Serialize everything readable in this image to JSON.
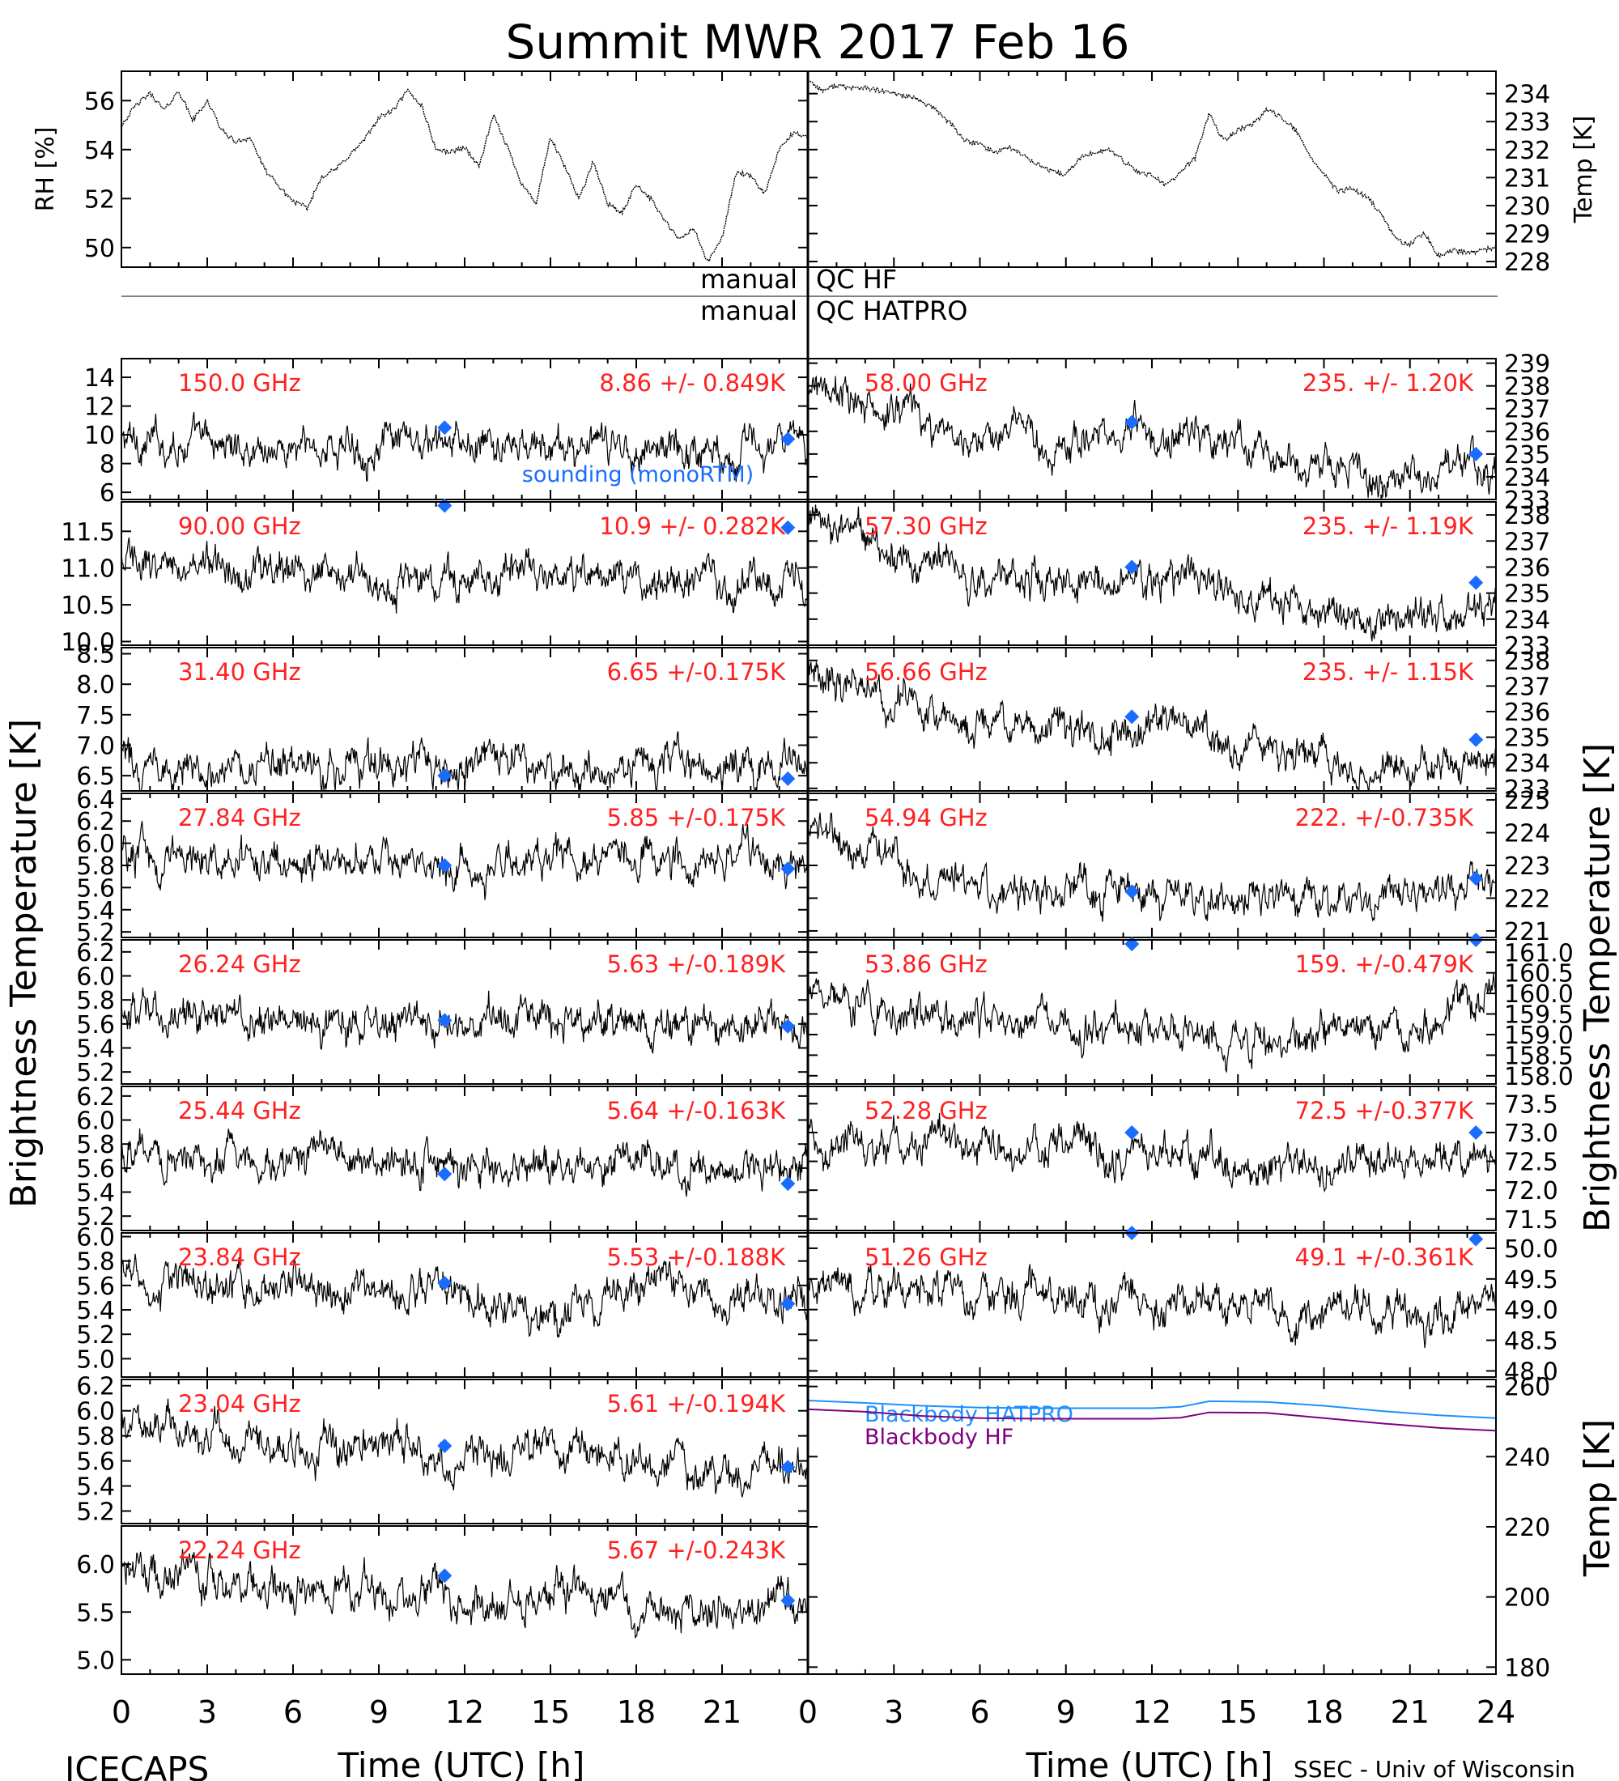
{
  "title": "Summit MWR 2017 Feb 16",
  "footer_left": "ICECAPS",
  "footer_right": "SSEC - Univ of Wisconsin",
  "qc": [
    {
      "left": "manual",
      "right": "QC HF"
    },
    {
      "left": "manual",
      "right": "QC HATPRO"
    }
  ],
  "colors": {
    "trace": "#000000",
    "stat_text": "#ff2020",
    "sounding_marker": "#1a6cff",
    "bb_hatpro": "#1e90ff",
    "bb_hf": "#800080"
  },
  "chart_data": [
    {
      "type": "line",
      "id": "rh",
      "ylabel": "RH [%]",
      "ylim": [
        49.2,
        57.2
      ],
      "yticks": [
        50,
        52,
        54,
        56
      ],
      "xlim": [
        0,
        24
      ],
      "series": [
        {
          "x": [
            0,
            0.5,
            1,
            1.5,
            2,
            2.5,
            3,
            3.5,
            4,
            4.5,
            5,
            5.5,
            6,
            6.5,
            7,
            7.5,
            8,
            8.5,
            9,
            9.5,
            10,
            10.5,
            11,
            11.5,
            12,
            12.5,
            13,
            13.5,
            14,
            14.5,
            15,
            15.5,
            16,
            16.5,
            17,
            17.5,
            18,
            18.5,
            19,
            19.5,
            20,
            20.5,
            21,
            21.5,
            22,
            22.5,
            23,
            23.5,
            24
          ],
          "y": [
            55.0,
            55.8,
            56.3,
            55.6,
            56.4,
            55.2,
            56.0,
            54.8,
            54.3,
            54.5,
            53.2,
            52.5,
            51.9,
            51.6,
            52.9,
            53.2,
            53.8,
            54.4,
            55.3,
            55.6,
            56.4,
            55.8,
            54.0,
            53.9,
            54.1,
            53.3,
            55.4,
            54.1,
            52.6,
            51.8,
            54.5,
            53.3,
            52.0,
            53.5,
            51.8,
            51.4,
            52.6,
            52.0,
            51.1,
            50.3,
            50.8,
            49.4,
            50.4,
            53.1,
            52.9,
            52.2,
            54.0,
            54.7,
            54.5
          ]
        }
      ]
    },
    {
      "type": "line",
      "id": "temp",
      "ylabel": "Temp [K]",
      "ylim": [
        227.8,
        234.8
      ],
      "yticks": [
        228,
        229,
        230,
        231,
        232,
        233,
        234
      ],
      "xlim": [
        0,
        24
      ],
      "series": [
        {
          "x": [
            0,
            0.5,
            1,
            1.5,
            2,
            2.5,
            3,
            3.5,
            4,
            4.5,
            5,
            5.5,
            6,
            6.5,
            7,
            7.5,
            8,
            8.5,
            9,
            9.5,
            10,
            10.5,
            11,
            11.5,
            12,
            12.5,
            13,
            13.5,
            14,
            14.5,
            15,
            15.5,
            16,
            16.5,
            17,
            17.5,
            18,
            18.5,
            19,
            19.5,
            20,
            20.5,
            21,
            21.5,
            22,
            22.5,
            23,
            23.5,
            24
          ],
          "y": [
            234.5,
            234.1,
            234.3,
            234.2,
            234.2,
            234.1,
            234.0,
            233.9,
            233.7,
            233.4,
            232.9,
            232.3,
            232.2,
            231.9,
            232.1,
            231.8,
            231.5,
            231.2,
            231.1,
            231.7,
            231.9,
            232.0,
            231.6,
            231.2,
            231.1,
            230.7,
            231.2,
            231.7,
            233.3,
            232.3,
            232.7,
            232.9,
            233.4,
            233.2,
            232.7,
            231.8,
            231.1,
            230.5,
            230.6,
            230.3,
            229.7,
            228.8,
            228.6,
            229.0,
            228.2,
            228.4,
            228.3,
            228.4,
            228.5
          ]
        }
      ]
    },
    {
      "type": "scatter",
      "id": "150.0",
      "label": "150.0 GHz",
      "stat": "8.86 +/- 0.849K",
      "ylim": [
        5.5,
        15.3
      ],
      "yticks": [
        6,
        8,
        10,
        12,
        14
      ],
      "x_profile": [
        0,
        3,
        6,
        9,
        12,
        15,
        18,
        21,
        24
      ],
      "y_profile": [
        9.6,
        9.4,
        9.0,
        9.3,
        9.1,
        9.0,
        9.2,
        9.0,
        9.2
      ],
      "sounding": [
        [
          11.3,
          10.5
        ],
        [
          23.3,
          9.7
        ]
      ],
      "annotation": "sounding (monoRTM)"
    },
    {
      "type": "scatter",
      "id": "90.00",
      "label": "90.00 GHz",
      "stat": "10.9 +/- 0.282K",
      "ylim": [
        9.95,
        11.9
      ],
      "yticks": [
        10.0,
        10.5,
        11.0,
        11.5
      ],
      "x_profile": [
        0,
        3,
        6,
        9,
        12,
        15,
        18,
        21,
        24
      ],
      "y_profile": [
        11.1,
        11.05,
        10.95,
        10.9,
        10.85,
        10.9,
        10.85,
        10.75,
        10.8
      ],
      "sounding": [
        [
          11.3,
          11.85
        ],
        [
          23.3,
          11.55
        ]
      ]
    },
    {
      "type": "scatter",
      "id": "31.40",
      "label": "31.40 GHz",
      "stat": "6.65 +/-0.175K",
      "ylim": [
        6.25,
        8.6
      ],
      "yticks": [
        6.5,
        7.0,
        7.5,
        8.0,
        8.5
      ],
      "x_profile": [
        0,
        3,
        6,
        9,
        12,
        15,
        18,
        21,
        24
      ],
      "y_profile": [
        6.75,
        6.7,
        6.65,
        6.6,
        6.65,
        6.6,
        6.65,
        6.6,
        6.7
      ],
      "sounding": [
        [
          11.3,
          6.5
        ],
        [
          23.3,
          6.45
        ]
      ]
    },
    {
      "type": "scatter",
      "id": "27.84",
      "label": "27.84 GHz",
      "stat": "5.85 +/-0.175K",
      "ylim": [
        5.15,
        6.45
      ],
      "yticks": [
        5.2,
        5.4,
        5.6,
        5.8,
        6.0,
        6.2,
        6.4
      ],
      "x_profile": [
        0,
        3,
        6,
        9,
        12,
        15,
        18,
        21,
        24
      ],
      "y_profile": [
        5.9,
        5.85,
        5.8,
        5.85,
        5.8,
        5.9,
        5.85,
        5.8,
        5.85
      ],
      "sounding": [
        [
          11.3,
          5.8
        ],
        [
          23.3,
          5.77
        ]
      ]
    },
    {
      "type": "scatter",
      "id": "26.24",
      "label": "26.24 GHz",
      "stat": "5.63 +/-0.189K",
      "ylim": [
        5.1,
        6.3
      ],
      "yticks": [
        5.2,
        5.4,
        5.6,
        5.8,
        6.0,
        6.2
      ],
      "x_profile": [
        0,
        3,
        6,
        9,
        12,
        15,
        18,
        21,
        24
      ],
      "y_profile": [
        5.7,
        5.65,
        5.6,
        5.65,
        5.6,
        5.65,
        5.6,
        5.6,
        5.65
      ],
      "sounding": [
        [
          11.3,
          5.63
        ],
        [
          23.3,
          5.58
        ]
      ]
    },
    {
      "type": "scatter",
      "id": "25.44",
      "label": "25.44 GHz",
      "stat": "5.64 +/-0.163K",
      "ylim": [
        5.08,
        6.28
      ],
      "yticks": [
        5.2,
        5.4,
        5.6,
        5.8,
        6.0,
        6.2
      ],
      "x_profile": [
        0,
        3,
        6,
        9,
        12,
        15,
        18,
        21,
        24
      ],
      "y_profile": [
        5.75,
        5.7,
        5.65,
        5.7,
        5.6,
        5.6,
        5.65,
        5.6,
        5.6
      ],
      "sounding": [
        [
          11.3,
          5.55
        ],
        [
          23.3,
          5.47
        ]
      ]
    },
    {
      "type": "scatter",
      "id": "23.84",
      "label": "23.84 GHz",
      "stat": "5.53 +/-0.188K",
      "ylim": [
        4.85,
        6.03
      ],
      "yticks": [
        5.0,
        5.2,
        5.4,
        5.6,
        5.8,
        6.0
      ],
      "x_profile": [
        0,
        3,
        6,
        9,
        12,
        15,
        18,
        21,
        24
      ],
      "y_profile": [
        5.65,
        5.6,
        5.55,
        5.6,
        5.5,
        5.3,
        5.6,
        5.5,
        5.5
      ],
      "sounding": [
        [
          11.3,
          5.62
        ],
        [
          23.3,
          5.45
        ]
      ]
    },
    {
      "type": "scatter",
      "id": "23.04",
      "label": "23.04 GHz",
      "stat": "5.61 +/-0.194K",
      "ylim": [
        5.1,
        6.25
      ],
      "yticks": [
        5.2,
        5.4,
        5.6,
        5.8,
        6.0,
        6.2
      ],
      "x_profile": [
        0,
        3,
        6,
        9,
        12,
        15,
        18,
        21,
        24
      ],
      "y_profile": [
        5.9,
        5.8,
        5.7,
        5.75,
        5.6,
        5.75,
        5.55,
        5.5,
        5.55
      ],
      "sounding": [
        [
          11.3,
          5.72
        ],
        [
          23.3,
          5.55
        ]
      ]
    },
    {
      "type": "scatter",
      "id": "22.24",
      "label": "22.24 GHz",
      "stat": "5.67 +/-0.243K",
      "ylim": [
        4.85,
        6.4
      ],
      "yticks": [
        5.0,
        5.5,
        6.0
      ],
      "x_profile": [
        0,
        3,
        6,
        9,
        12,
        15,
        18,
        21,
        24
      ],
      "y_profile": [
        5.95,
        5.85,
        5.7,
        5.75,
        5.6,
        5.7,
        5.55,
        5.5,
        5.55
      ],
      "sounding": [
        [
          11.3,
          5.88
        ],
        [
          23.3,
          5.62
        ]
      ]
    },
    {
      "type": "scatter",
      "id": "58.00",
      "label": "58.00 GHz",
      "stat": "235. +/- 1.20K",
      "ylim": [
        233,
        239.2
      ],
      "yticks": [
        233,
        234,
        235,
        236,
        237,
        238,
        239
      ],
      "x_profile": [
        0,
        1,
        3,
        6,
        9,
        11,
        13,
        15,
        18,
        20,
        22,
        24
      ],
      "y_profile": [
        238.0,
        237.6,
        236.8,
        235.9,
        235.6,
        235.9,
        236.0,
        235.3,
        234.4,
        234.0,
        234.2,
        234.6
      ],
      "sounding": [
        [
          11.3,
          236.4
        ],
        [
          23.3,
          235.0
        ]
      ]
    },
    {
      "type": "scatter",
      "id": "57.30",
      "label": "57.30 GHz",
      "stat": "235. +/- 1.19K",
      "ylim": [
        233,
        238.5
      ],
      "yticks": [
        233,
        234,
        235,
        236,
        237,
        238
      ],
      "x_profile": [
        0,
        1,
        3,
        6,
        9,
        11,
        13,
        15,
        18,
        20,
        22,
        24
      ],
      "y_profile": [
        238.0,
        237.4,
        236.6,
        235.6,
        235.5,
        235.6,
        235.7,
        235.0,
        234.3,
        233.8,
        234.0,
        234.4
      ],
      "sounding": [
        [
          11.3,
          236.0
        ],
        [
          23.3,
          235.4
        ]
      ]
    },
    {
      "type": "scatter",
      "id": "56.66",
      "label": "56.66 GHz",
      "stat": "235. +/- 1.15K",
      "ylim": [
        232.9,
        238.5
      ],
      "yticks": [
        233,
        234,
        235,
        236,
        237,
        238
      ],
      "x_profile": [
        0,
        1,
        3,
        6,
        9,
        11,
        13,
        15,
        18,
        20,
        22,
        24
      ],
      "y_profile": [
        237.8,
        237.3,
        236.4,
        235.4,
        235.2,
        235.3,
        235.5,
        234.8,
        234.1,
        233.6,
        233.9,
        234.2
      ],
      "sounding": [
        [
          11.3,
          235.8
        ],
        [
          23.3,
          234.9
        ]
      ]
    },
    {
      "type": "scatter",
      "id": "54.94",
      "label": "54.94 GHz",
      "stat": "222. +/-0.735K",
      "ylim": [
        220.8,
        225.2
      ],
      "yticks": [
        221,
        222,
        223,
        224,
        225
      ],
      "x_profile": [
        0,
        1,
        3,
        6,
        9,
        11,
        13,
        15,
        18,
        20,
        22,
        24
      ],
      "y_profile": [
        224.2,
        223.8,
        223.0,
        222.3,
        222.2,
        222.2,
        222.0,
        221.9,
        221.9,
        222.0,
        222.2,
        222.6
      ],
      "sounding": [
        [
          11.3,
          222.2
        ],
        [
          23.3,
          222.6
        ]
      ]
    },
    {
      "type": "scatter",
      "id": "53.86",
      "label": "53.86 GHz",
      "stat": "159. +/-0.479K",
      "ylim": [
        157.8,
        161.3
      ],
      "yticks": [
        158.0,
        158.5,
        159.0,
        159.5,
        160.0,
        160.5,
        161.0
      ],
      "x_profile": [
        0,
        1,
        3,
        6,
        9,
        12,
        15,
        18,
        21,
        24
      ],
      "y_profile": [
        160.2,
        159.9,
        159.5,
        159.3,
        159.1,
        159.1,
        158.9,
        159.0,
        159.3,
        159.9
      ],
      "sounding": [
        [
          11.3,
          161.2
        ],
        [
          23.3,
          161.6
        ]
      ]
    },
    {
      "type": "scatter",
      "id": "52.28",
      "label": "52.28 GHz",
      "stat": "72.5 +/-0.377K",
      "ylim": [
        71.3,
        73.8
      ],
      "yticks": [
        71.5,
        72.0,
        72.5,
        73.0,
        73.5
      ],
      "x_profile": [
        0,
        3,
        6,
        9,
        12,
        15,
        18,
        21,
        24
      ],
      "y_profile": [
        72.9,
        72.8,
        72.7,
        72.7,
        72.6,
        72.4,
        72.4,
        72.5,
        72.6
      ],
      "sounding": [
        [
          11.3,
          73.0
        ],
        [
          23.3,
          73.0
        ]
      ]
    },
    {
      "type": "scatter",
      "id": "51.26",
      "label": "51.26 GHz",
      "stat": "49.1 +/-0.361K",
      "ylim": [
        47.9,
        50.25
      ],
      "yticks": [
        48.0,
        48.5,
        49.0,
        49.5,
        50.0
      ],
      "x_profile": [
        0,
        3,
        6,
        9,
        12,
        15,
        18,
        21,
        24
      ],
      "y_profile": [
        49.4,
        49.3,
        49.2,
        49.2,
        49.1,
        49.0,
        48.9,
        48.9,
        49.0
      ],
      "sounding": [
        [
          11.3,
          50.7
        ],
        [
          23.3,
          50.15
        ]
      ]
    },
    {
      "type": "line",
      "id": "blackbody",
      "ylabel": "Temp [K]",
      "ylim": [
        178,
        262
      ],
      "yticks": [
        180,
        200,
        220,
        240,
        260
      ],
      "xlim": [
        0,
        24
      ],
      "series": [
        {
          "name": "Blackbody HATPRO",
          "x": [
            0,
            2,
            4,
            6,
            8,
            10,
            12,
            13,
            14,
            16,
            18,
            20,
            22,
            24
          ],
          "y": [
            256.0,
            255.3,
            254.5,
            254.0,
            253.8,
            253.8,
            253.8,
            254.2,
            255.8,
            255.6,
            254.5,
            253.0,
            251.8,
            251.0
          ]
        },
        {
          "name": "Blackbody HF",
          "x": [
            0,
            2,
            4,
            6,
            8,
            10,
            12,
            13,
            14,
            16,
            18,
            20,
            22,
            24
          ],
          "y": [
            253.5,
            252.8,
            251.6,
            251.0,
            250.8,
            250.8,
            250.8,
            251.1,
            252.6,
            252.5,
            251.0,
            249.5,
            248.2,
            247.4
          ]
        }
      ]
    }
  ],
  "left_ylabel": "Brightness Temperature [K]",
  "right_ylabel": "Brightness Temperature [K]",
  "right_temp_ylabel": "Temp [K]",
  "xlabel": "Time (UTC) [h]",
  "xticks_left": [
    "0",
    "3",
    "6",
    "9",
    "12",
    "15",
    "18",
    "21"
  ],
  "xticks_right": [
    "0",
    "3",
    "6",
    "9",
    "12",
    "15",
    "18",
    "21",
    "24"
  ]
}
